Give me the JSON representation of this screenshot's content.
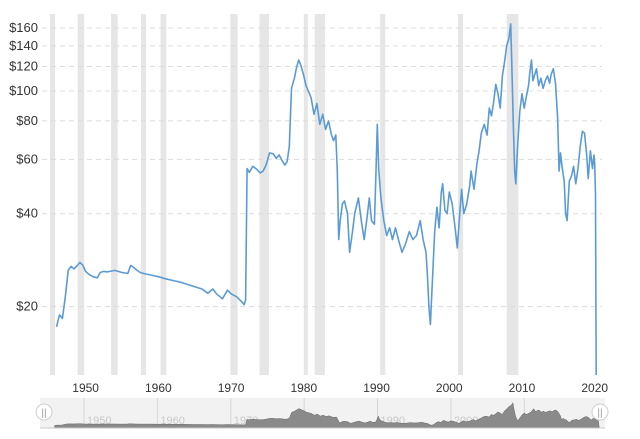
{
  "chart_data": {
    "type": "line",
    "title": "",
    "xlabel": "",
    "ylabel": "",
    "y_scale": "log",
    "y_ticks": [
      {
        "value": 20,
        "label": "$20"
      },
      {
        "value": 40,
        "label": "$40"
      },
      {
        "value": 60,
        "label": "$60"
      },
      {
        "value": 80,
        "label": "$80"
      },
      {
        "value": 100,
        "label": "$100"
      },
      {
        "value": 120,
        "label": "$120"
      },
      {
        "value": 140,
        "label": "$140"
      },
      {
        "value": 160,
        "label": "$160"
      }
    ],
    "x_ticks": [
      "1950",
      "1960",
      "1970",
      "1980",
      "1990",
      "2000",
      "2010",
      "2020"
    ],
    "x_range": [
      1944,
      2021
    ],
    "ylim": [
      12,
      175
    ],
    "grid": true,
    "recession_bands": [
      [
        1945.1,
        1945.8
      ],
      [
        1948.9,
        1949.8
      ],
      [
        1953.5,
        1954.4
      ],
      [
        1957.6,
        1958.3
      ],
      [
        1960.3,
        1961.1
      ],
      [
        1969.9,
        1970.9
      ],
      [
        1973.9,
        1975.2
      ],
      [
        1980.0,
        1980.5
      ],
      [
        1981.5,
        1982.9
      ],
      [
        1990.5,
        1991.2
      ],
      [
        2001.2,
        2001.9
      ],
      [
        2007.9,
        2009.5
      ]
    ],
    "series": [
      {
        "values": [
          [
            1946.0,
            17.2
          ],
          [
            1946.4,
            18.8
          ],
          [
            1946.8,
            18.3
          ],
          [
            1947.2,
            21.5
          ],
          [
            1947.6,
            26.2
          ],
          [
            1948.0,
            27.0
          ],
          [
            1948.4,
            26.5
          ],
          [
            1948.8,
            27.1
          ],
          [
            1949.2,
            27.8
          ],
          [
            1949.6,
            27.3
          ],
          [
            1950.0,
            26.0
          ],
          [
            1950.5,
            25.4
          ],
          [
            1951.0,
            25.0
          ],
          [
            1951.6,
            24.8
          ],
          [
            1952.0,
            25.8
          ],
          [
            1952.5,
            26.0
          ],
          [
            1953.0,
            25.9
          ],
          [
            1954.0,
            26.2
          ],
          [
            1955.0,
            25.8
          ],
          [
            1955.8,
            25.6
          ],
          [
            1956.2,
            27.2
          ],
          [
            1956.6,
            26.8
          ],
          [
            1957.0,
            26.3
          ],
          [
            1957.5,
            25.8
          ],
          [
            1958.0,
            25.6
          ],
          [
            1959.0,
            25.3
          ],
          [
            1960.0,
            25.0
          ],
          [
            1961.0,
            24.6
          ],
          [
            1962.0,
            24.3
          ],
          [
            1963.0,
            24.0
          ],
          [
            1964.0,
            23.6
          ],
          [
            1965.0,
            23.2
          ],
          [
            1966.0,
            22.8
          ],
          [
            1966.8,
            22.1
          ],
          [
            1967.5,
            22.8
          ],
          [
            1968.0,
            22.0
          ],
          [
            1968.8,
            21.2
          ],
          [
            1969.5,
            22.6
          ],
          [
            1970.0,
            22.0
          ],
          [
            1970.8,
            21.5
          ],
          [
            1971.4,
            20.8
          ],
          [
            1971.8,
            20.3
          ],
          [
            1972.0,
            21.0
          ],
          [
            1972.2,
            56.0
          ],
          [
            1972.5,
            54.5
          ],
          [
            1973.0,
            57.0
          ],
          [
            1973.5,
            55.8
          ],
          [
            1974.0,
            54.2
          ],
          [
            1974.4,
            55.0
          ],
          [
            1974.8,
            57.5
          ],
          [
            1975.3,
            63.0
          ],
          [
            1975.8,
            62.5
          ],
          [
            1976.2,
            60.5
          ],
          [
            1976.6,
            62.0
          ],
          [
            1977.0,
            59.5
          ],
          [
            1977.4,
            57.5
          ],
          [
            1977.7,
            59.0
          ],
          [
            1978.0,
            66.0
          ],
          [
            1978.3,
            102.0
          ],
          [
            1978.7,
            110.0
          ],
          [
            1979.0,
            119.0
          ],
          [
            1979.3,
            126.0
          ],
          [
            1979.6,
            121.0
          ],
          [
            1980.0,
            112.0
          ],
          [
            1980.3,
            104.0
          ],
          [
            1980.7,
            99.0
          ],
          [
            1981.0,
            95.0
          ],
          [
            1981.4,
            84.0
          ],
          [
            1981.8,
            91.0
          ],
          [
            1982.2,
            78.0
          ],
          [
            1982.6,
            84.0
          ],
          [
            1983.0,
            75.0
          ],
          [
            1983.4,
            80.0
          ],
          [
            1983.8,
            72.0
          ],
          [
            1984.1,
            69.0
          ],
          [
            1984.4,
            72.0
          ],
          [
            1984.6,
            55.0
          ],
          [
            1984.8,
            33.0
          ],
          [
            1985.0,
            38.0
          ],
          [
            1985.3,
            43.0
          ],
          [
            1985.6,
            44.0
          ],
          [
            1986.0,
            40.0
          ],
          [
            1986.3,
            30.0
          ],
          [
            1986.7,
            35.0
          ],
          [
            1987.0,
            40.0
          ],
          [
            1987.5,
            45.0
          ],
          [
            1987.9,
            38.0
          ],
          [
            1988.3,
            33.0
          ],
          [
            1988.7,
            39.0
          ],
          [
            1989.0,
            45.0
          ],
          [
            1989.3,
            38.0
          ],
          [
            1989.7,
            37.0
          ],
          [
            1989.9,
            52.0
          ],
          [
            1990.1,
            78.0
          ],
          [
            1990.3,
            56.0
          ],
          [
            1990.6,
            45.0
          ],
          [
            1991.0,
            38.0
          ],
          [
            1991.4,
            34.0
          ],
          [
            1991.8,
            36.0
          ],
          [
            1992.2,
            33.0
          ],
          [
            1992.6,
            36.0
          ],
          [
            1993.0,
            33.0
          ],
          [
            1993.5,
            30.0
          ],
          [
            1994.0,
            32.0
          ],
          [
            1994.5,
            35.0
          ],
          [
            1995.0,
            33.0
          ],
          [
            1995.5,
            34.0
          ],
          [
            1996.0,
            38.0
          ],
          [
            1996.4,
            33.0
          ],
          [
            1996.8,
            30.0
          ],
          [
            1997.0,
            25.0
          ],
          [
            1997.2,
            20.0
          ],
          [
            1997.4,
            17.5
          ],
          [
            1997.6,
            22.0
          ],
          [
            1997.8,
            28.0
          ],
          [
            1998.0,
            35.0
          ],
          [
            1998.3,
            42.0
          ],
          [
            1998.6,
            36.0
          ],
          [
            1998.9,
            47.0
          ],
          [
            1999.1,
            50.0
          ],
          [
            1999.4,
            41.0
          ],
          [
            1999.7,
            40.0
          ],
          [
            2000.0,
            47.0
          ],
          [
            2000.4,
            43.0
          ],
          [
            2000.8,
            36.0
          ],
          [
            2001.1,
            31.0
          ],
          [
            2001.4,
            39.0
          ],
          [
            2001.7,
            48.0
          ],
          [
            2002.0,
            40.0
          ],
          [
            2002.4,
            43.0
          ],
          [
            2002.8,
            49.0
          ],
          [
            2003.0,
            55.0
          ],
          [
            2003.4,
            48.0
          ],
          [
            2003.8,
            58.0
          ],
          [
            2004.1,
            64.0
          ],
          [
            2004.4,
            73.0
          ],
          [
            2004.8,
            78.0
          ],
          [
            2005.2,
            72.0
          ],
          [
            2005.5,
            88.0
          ],
          [
            2005.8,
            83.0
          ],
          [
            2006.1,
            92.0
          ],
          [
            2006.4,
            105.0
          ],
          [
            2006.7,
            98.0
          ],
          [
            2007.0,
            88.0
          ],
          [
            2007.3,
            112.0
          ],
          [
            2007.6,
            124.0
          ],
          [
            2007.9,
            140.0
          ],
          [
            2008.2,
            148.0
          ],
          [
            2008.45,
            165.0
          ],
          [
            2008.6,
            122.0
          ],
          [
            2008.8,
            78.0
          ],
          [
            2009.0,
            55.0
          ],
          [
            2009.15,
            50.0
          ],
          [
            2009.4,
            66.0
          ],
          [
            2009.7,
            86.0
          ],
          [
            2010.0,
            98.0
          ],
          [
            2010.3,
            88.0
          ],
          [
            2010.6,
            96.0
          ],
          [
            2010.9,
            104.0
          ],
          [
            2011.1,
            116.0
          ],
          [
            2011.3,
            126.0
          ],
          [
            2011.5,
            108.0
          ],
          [
            2011.8,
            114.0
          ],
          [
            2012.0,
            118.0
          ],
          [
            2012.3,
            104.0
          ],
          [
            2012.6,
            110.0
          ],
          [
            2012.9,
            102.0
          ],
          [
            2013.2,
            108.0
          ],
          [
            2013.5,
            112.0
          ],
          [
            2013.8,
            106.0
          ],
          [
            2014.0,
            113.0
          ],
          [
            2014.3,
            118.0
          ],
          [
            2014.6,
            106.0
          ],
          [
            2014.9,
            82.0
          ],
          [
            2015.1,
            55.0
          ],
          [
            2015.3,
            63.0
          ],
          [
            2015.5,
            57.0
          ],
          [
            2015.8,
            51.0
          ],
          [
            2016.0,
            40.0
          ],
          [
            2016.2,
            38.0
          ],
          [
            2016.5,
            51.0
          ],
          [
            2016.8,
            53.0
          ],
          [
            2017.1,
            57.0
          ],
          [
            2017.4,
            50.0
          ],
          [
            2017.7,
            56.0
          ],
          [
            2018.0,
            66.0
          ],
          [
            2018.3,
            74.0
          ],
          [
            2018.6,
            73.0
          ],
          [
            2018.9,
            62.0
          ],
          [
            2019.1,
            52.0
          ],
          [
            2019.4,
            64.0
          ],
          [
            2019.7,
            56.0
          ],
          [
            2019.9,
            62.0
          ],
          [
            2020.0,
            58.0
          ],
          [
            2020.1,
            46.0
          ],
          [
            2020.15,
            25.0
          ],
          [
            2020.2,
            12.0
          ]
        ],
        "color": "#5b9bd5"
      }
    ]
  },
  "navigator": {
    "tick_labels": [
      "1950",
      "1960",
      "1970",
      "1980",
      "1990",
      "2000",
      "2010"
    ],
    "left_handle_glyph": "||",
    "right_handle_glyph": "||"
  }
}
